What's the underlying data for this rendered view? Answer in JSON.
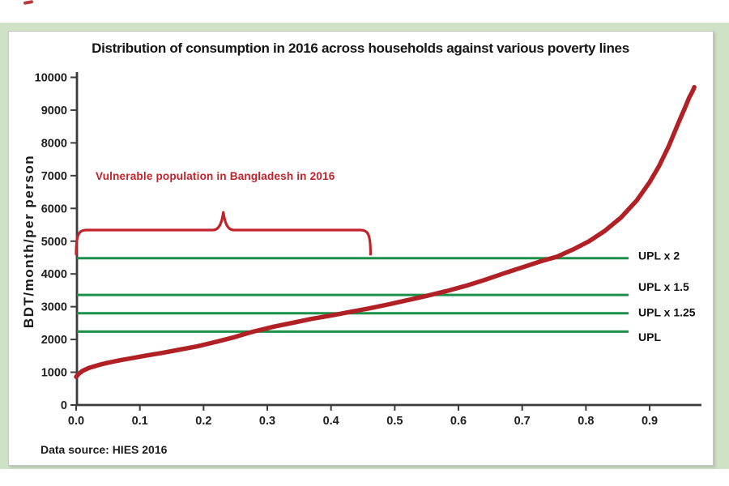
{
  "colors": {
    "frame_green": "#cfe2c5",
    "panel_white": "#ffffff",
    "stray_mark_red": "#b73a3e",
    "axis_black": "#3c3c3c"
  },
  "chart": {
    "source_note": "Data source: HIES 2016"
  },
  "chart_data": {
    "type": "line",
    "title": "Distribution of consumption in 2016 across households against various poverty lines",
    "xlabel": "",
    "ylabel": "BDT/month/per person",
    "xlim": [
      0,
      0.97
    ],
    "ylim": [
      0,
      10000
    ],
    "x_ticks": [
      0.0,
      0.1,
      0.2,
      0.3,
      0.4,
      0.5,
      0.6,
      0.7,
      0.8,
      0.9
    ],
    "y_ticks": [
      0,
      1000,
      2000,
      3000,
      4000,
      5000,
      6000,
      7000,
      8000,
      9000,
      10000
    ],
    "grid": false,
    "legend": "none",
    "series": [
      {
        "name": "consumption_curve",
        "color": "#b02025",
        "points": [
          [
            0.0,
            860
          ],
          [
            0.004,
            950
          ],
          [
            0.01,
            1040
          ],
          [
            0.02,
            1130
          ],
          [
            0.035,
            1220
          ],
          [
            0.05,
            1290
          ],
          [
            0.07,
            1370
          ],
          [
            0.09,
            1440
          ],
          [
            0.11,
            1510
          ],
          [
            0.135,
            1590
          ],
          [
            0.16,
            1680
          ],
          [
            0.19,
            1790
          ],
          [
            0.22,
            1930
          ],
          [
            0.25,
            2080
          ],
          [
            0.265,
            2170
          ],
          [
            0.28,
            2250
          ],
          [
            0.31,
            2390
          ],
          [
            0.34,
            2510
          ],
          [
            0.37,
            2630
          ],
          [
            0.4,
            2730
          ],
          [
            0.43,
            2840
          ],
          [
            0.46,
            2950
          ],
          [
            0.49,
            3070
          ],
          [
            0.52,
            3200
          ],
          [
            0.55,
            3330
          ],
          [
            0.58,
            3470
          ],
          [
            0.61,
            3630
          ],
          [
            0.64,
            3810
          ],
          [
            0.67,
            4010
          ],
          [
            0.7,
            4200
          ],
          [
            0.73,
            4390
          ],
          [
            0.755,
            4530
          ],
          [
            0.78,
            4750
          ],
          [
            0.805,
            5000
          ],
          [
            0.83,
            5320
          ],
          [
            0.855,
            5720
          ],
          [
            0.88,
            6250
          ],
          [
            0.9,
            6800
          ],
          [
            0.915,
            7300
          ],
          [
            0.93,
            7900
          ],
          [
            0.945,
            8600
          ],
          [
            0.955,
            9050
          ],
          [
            0.962,
            9380
          ],
          [
            0.968,
            9600
          ],
          [
            0.97,
            9700
          ]
        ]
      }
    ],
    "poverty_line_color": "#1a9048",
    "poverty_lines": [
      {
        "label": "UPL",
        "value": 2240,
        "label_dy": 8
      },
      {
        "label": "UPL x 1.25",
        "value": 2800,
        "label_dy": 0
      },
      {
        "label": "UPL x 1.5",
        "value": 3360,
        "label_dy": -9
      },
      {
        "label": "UPL x 2",
        "value": 4480,
        "label_dy": -2
      }
    ],
    "annotation": {
      "text": "Vulnerable population in Bangladesh in 2016",
      "color": "#c2232a",
      "brace": {
        "x_range": [
          0.0,
          0.462
        ],
        "bar_value": 5340,
        "end_value": 4600,
        "peak_value": 5880
      }
    }
  }
}
